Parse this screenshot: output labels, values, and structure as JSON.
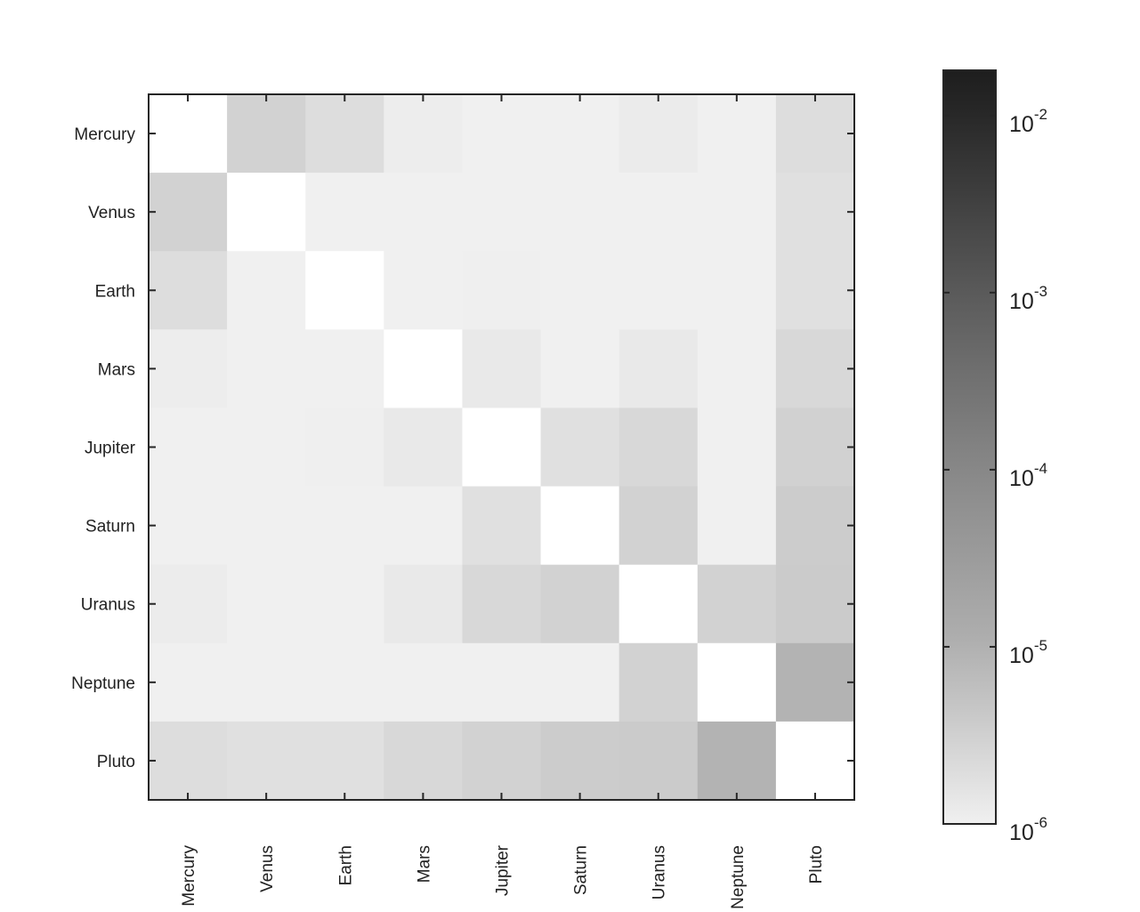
{
  "chart_data": {
    "type": "heatmap",
    "title": "",
    "xlabel": "",
    "ylabel": "",
    "x_categories": [
      "Mercury",
      "Venus",
      "Earth",
      "Mars",
      "Jupiter",
      "Saturn",
      "Uranus",
      "Neptune",
      "Pluto"
    ],
    "y_categories": [
      "Mercury",
      "Venus",
      "Earth",
      "Mars",
      "Jupiter",
      "Saturn",
      "Uranus",
      "Neptune",
      "Pluto"
    ],
    "values": [
      [
        null,
        2.9e-06,
        2e-06,
        1.1e-06,
        1e-06,
        1e-06,
        1.2e-06,
        1e-06,
        2e-06
      ],
      [
        2.9e-06,
        null,
        1e-06,
        1e-06,
        1e-06,
        1e-06,
        1e-06,
        1e-06,
        1.8e-06
      ],
      [
        2e-06,
        1e-06,
        null,
        1e-06,
        1.05e-06,
        1e-06,
        1e-06,
        1e-06,
        1.8e-06
      ],
      [
        1.1e-06,
        1e-06,
        1e-06,
        null,
        1.3e-06,
        1e-06,
        1.3e-06,
        1e-06,
        2.4e-06
      ],
      [
        1e-06,
        1e-06,
        1.05e-06,
        1.3e-06,
        null,
        1.8e-06,
        2.4e-06,
        1e-06,
        3.1e-06
      ],
      [
        1e-06,
        1e-06,
        1e-06,
        1e-06,
        1.8e-06,
        null,
        2.9e-06,
        1e-06,
        3.6e-06
      ],
      [
        1.15e-06,
        1e-06,
        1e-06,
        1.3e-06,
        2.4e-06,
        2.9e-06,
        null,
        2.9e-06,
        3.8e-06
      ],
      [
        1e-06,
        1e-06,
        1e-06,
        1e-06,
        1e-06,
        1e-06,
        2.9e-06,
        null,
        8.9e-06
      ],
      [
        2e-06,
        1.8e-06,
        1.8e-06,
        2.4e-06,
        2.9e-06,
        3.6e-06,
        3.8e-06,
        8.9e-06,
        null
      ]
    ],
    "diagonal": "empty (white)",
    "colormap": "gray (light = low, dark = high)",
    "colorbar": {
      "scale": "log",
      "range": [
        1e-06,
        0.018
      ],
      "ticks": [
        {
          "value": 1e-06,
          "base": "10",
          "exp": "-6"
        },
        {
          "value": 1e-05,
          "base": "10",
          "exp": "-5"
        },
        {
          "value": 0.0001,
          "base": "10",
          "exp": "-4"
        },
        {
          "value": 0.001,
          "base": "10",
          "exp": "-3"
        },
        {
          "value": 0.01,
          "base": "10",
          "exp": "-2"
        }
      ],
      "placement": "right"
    },
    "grid": false
  }
}
